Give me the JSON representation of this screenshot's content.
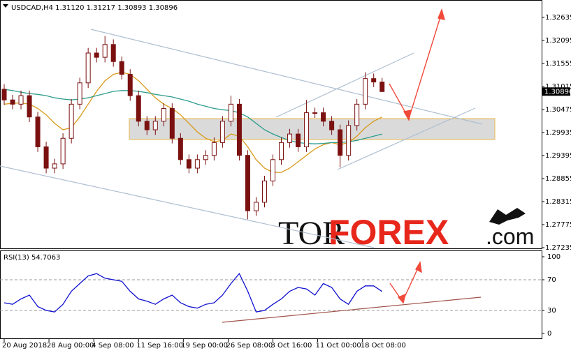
{
  "chart_data": {
    "type": "candlestick",
    "title": "USDCAD,H4  1.31120 1.31217 1.30893 1.30896",
    "x": [
      0,
      1,
      2,
      3,
      4,
      5,
      6,
      7,
      8,
      9,
      10,
      11,
      12,
      13,
      14,
      15,
      16,
      17,
      18,
      19,
      20,
      21,
      22,
      23,
      24,
      25,
      26,
      27,
      28,
      29,
      30,
      31,
      32,
      33,
      34,
      35,
      36,
      37,
      38,
      39,
      40,
      41,
      42,
      43,
      44,
      45
    ],
    "open": [
      1.3095,
      1.307,
      1.306,
      1.308,
      1.303,
      1.296,
      1.291,
      1.292,
      1.298,
      1.306,
      1.311,
      1.318,
      1.317,
      1.32,
      1.316,
      1.313,
      1.308,
      1.302,
      1.3,
      1.302,
      1.305,
      1.298,
      1.293,
      1.291,
      1.293,
      1.294,
      1.297,
      1.302,
      1.306,
      1.294,
      1.281,
      1.283,
      1.288,
      1.293,
      1.297,
      1.299,
      1.296,
      1.304,
      1.304,
      1.302,
      1.3,
      1.294,
      1.301,
      1.306,
      1.312,
      1.3112
    ],
    "high": [
      1.3107,
      1.3082,
      1.3092,
      1.3092,
      1.3042,
      1.2972,
      1.2932,
      1.2992,
      1.3072,
      1.3122,
      1.3192,
      1.3192,
      1.322,
      1.3212,
      1.3172,
      1.3142,
      1.3092,
      1.3032,
      1.3032,
      1.3062,
      1.3062,
      1.2992,
      1.2942,
      1.2942,
      1.2952,
      1.2982,
      1.3032,
      1.308,
      1.3072,
      1.2952,
      1.2842,
      1.2892,
      1.2942,
      1.2982,
      1.3002,
      1.3002,
      1.307,
      1.3052,
      1.3052,
      1.3032,
      1.3012,
      1.3022,
      1.3072,
      1.3135,
      1.3132,
      1.31217
    ],
    "low": [
      1.3058,
      1.3048,
      1.3048,
      1.3018,
      1.2948,
      1.2898,
      1.2898,
      1.2908,
      1.2968,
      1.3048,
      1.3098,
      1.3158,
      1.3158,
      1.3148,
      1.3118,
      1.3068,
      1.3008,
      1.2988,
      1.2988,
      1.3008,
      1.2968,
      1.2918,
      1.2898,
      1.2898,
      1.2918,
      1.2928,
      1.2958,
      1.3008,
      1.2928,
      1.279,
      1.2798,
      1.2818,
      1.2868,
      1.2918,
      1.2958,
      1.2948,
      1.2948,
      1.3028,
      1.3008,
      1.2988,
      1.2912,
      1.2928,
      1.2998,
      1.3048,
      1.31,
      1.30893
    ],
    "close": [
      1.307,
      1.306,
      1.308,
      1.303,
      1.296,
      1.291,
      1.292,
      1.298,
      1.306,
      1.311,
      1.318,
      1.317,
      1.32,
      1.316,
      1.313,
      1.308,
      1.302,
      1.3,
      1.302,
      1.305,
      1.298,
      1.293,
      1.291,
      1.293,
      1.294,
      1.297,
      1.302,
      1.306,
      1.294,
      1.281,
      1.283,
      1.288,
      1.293,
      1.297,
      1.299,
      1.296,
      1.304,
      1.304,
      1.302,
      1.3,
      1.294,
      1.301,
      1.306,
      1.312,
      1.3112,
      1.30896
    ],
    "color": "#7a1010",
    "moving_averages": [
      {
        "color": "#d99a1c",
        "values": [
          1.306,
          1.3062,
          1.3063,
          1.306,
          1.305,
          1.3035,
          1.3015,
          1.3,
          1.3005,
          1.303,
          1.306,
          1.309,
          1.3115,
          1.313,
          1.3135,
          1.313,
          1.3115,
          1.3095,
          1.3075,
          1.306,
          1.305,
          1.3035,
          1.3015,
          1.2995,
          1.298,
          1.2972,
          1.2975,
          1.299,
          1.2985,
          1.296,
          1.293,
          1.291,
          1.29,
          1.29,
          1.291,
          1.2925,
          1.294,
          1.2955,
          1.2965,
          1.297,
          1.2965,
          1.297,
          1.2985,
          1.3005,
          1.302,
          1.303
        ]
      },
      {
        "color": "#2e9c8c",
        "values": [
          1.3095,
          1.3092,
          1.3088,
          1.3085,
          1.3083,
          1.308,
          1.3075,
          1.3072,
          1.307,
          1.3072,
          1.3075,
          1.308,
          1.3085,
          1.309,
          1.3092,
          1.3092,
          1.309,
          1.3087,
          1.3083,
          1.308,
          1.3077,
          1.3072,
          1.3067,
          1.306,
          1.3055,
          1.305,
          1.3047,
          1.3045,
          1.304,
          1.303,
          1.3015,
          1.3,
          1.299,
          1.2982,
          1.2975,
          1.297,
          1.2968,
          1.2967,
          1.2968,
          1.297,
          1.297,
          1.2972,
          1.2975,
          1.298,
          1.2985,
          1.299
        ]
      }
    ],
    "last_price": 1.30896,
    "xlim": [
      -0.5,
      64
    ],
    "xticks": [
      {
        "value": 0,
        "label": "20 Aug 2018"
      },
      {
        "value": 5.33,
        "label": "28 Aug 00:00"
      },
      {
        "value": 10.67,
        "label": "4 Sep 08:00"
      },
      {
        "value": 16,
        "label": "11 Sep 16:00"
      },
      {
        "value": 21.33,
        "label": "19 Sep 00:00"
      },
      {
        "value": 26.67,
        "label": "26 Sep 08:00"
      },
      {
        "value": 32,
        "label": "3 Oct 16:00"
      },
      {
        "value": 37.33,
        "label": "11 Oct 00:00"
      },
      {
        "value": 42.67,
        "label": "18 Oct 08:00"
      }
    ],
    "ylim": [
      1.27235,
      1.33011
    ],
    "yticks": [
      1.32635,
      1.32095,
      1.31555,
      1.31015,
      1.30475,
      1.29935,
      1.29395,
      1.28855,
      1.28315,
      1.27775,
      1.27235
    ],
    "indicator": {
      "title": "RSI(13) 54.7063",
      "color": "#1010d0",
      "values": [
        40,
        38,
        45,
        50,
        35,
        30,
        28,
        38,
        55,
        65,
        75,
        78,
        72,
        70,
        68,
        55,
        45,
        42,
        38,
        45,
        50,
        40,
        35,
        33,
        38,
        40,
        50,
        65,
        78,
        55,
        28,
        30,
        38,
        45,
        55,
        60,
        58,
        50,
        65,
        60,
        45,
        38,
        55,
        62,
        62,
        54.7063
      ],
      "ylim": [
        0,
        100
      ],
      "yticks": [
        100,
        70,
        30,
        0
      ],
      "levels": [
        70,
        30
      ]
    }
  },
  "watermark": [
    "TOR",
    "FOREX",
    ".com"
  ]
}
